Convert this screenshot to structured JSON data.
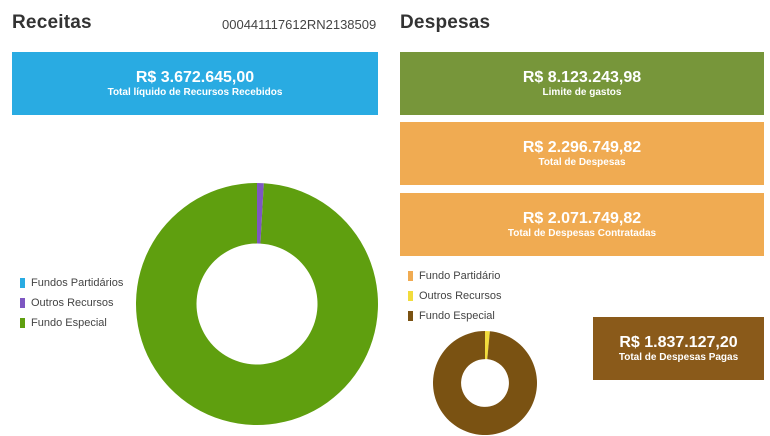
{
  "receitas": {
    "title": "Receitas",
    "code": "000441117612RN2138509",
    "total_card": {
      "value": "R$ 3.672.645,00",
      "label": "Total líquido de Recursos Recebidos",
      "color": "#29abe2"
    },
    "legend": [
      {
        "label": "Fundos Partidários",
        "color": "#29abe2"
      },
      {
        "label": "Outros Recursos",
        "color": "#7e57c2"
      },
      {
        "label": "Fundo Especial",
        "color": "#5f9f0f"
      }
    ]
  },
  "despesas": {
    "title": "Despesas",
    "cards": [
      {
        "value": "R$ 8.123.243,98",
        "label": "Limite de gastos",
        "color": "#77963a"
      },
      {
        "value": "R$ 2.296.749,82",
        "label": "Total de Despesas",
        "color": "#f0ab52"
      },
      {
        "value": "R$ 2.071.749,82",
        "label": "Total de Despesas Contratadas",
        "color": "#f0ab52"
      },
      {
        "value": "R$ 1.837.127,20",
        "label": "Total de Despesas Pagas",
        "color": "#8a5a1a"
      }
    ],
    "legend": [
      {
        "label": "Fundo Partidário",
        "color": "#f0ab52"
      },
      {
        "label": "Outros Recursos",
        "color": "#f2dc3c"
      },
      {
        "label": "Fundo Especial",
        "color": "#7a5212"
      }
    ]
  },
  "chart_data": [
    {
      "type": "pie",
      "categories": [
        "Fundos Partidários",
        "Outros Recursos",
        "Fundo Especial"
      ],
      "values": [
        0.0,
        0.9,
        99.1
      ],
      "colors": [
        "#29abe2",
        "#7e57c2",
        "#5f9f0f"
      ],
      "donut": true,
      "legend": "left"
    },
    {
      "type": "pie",
      "categories": [
        "Fundo Partidário",
        "Outros Recursos",
        "Fundo Especial"
      ],
      "values": [
        0.0,
        1.5,
        98.5
      ],
      "colors": [
        "#f0ab52",
        "#f2dc3c",
        "#7a5212"
      ],
      "donut": true,
      "legend": "top-left"
    }
  ]
}
